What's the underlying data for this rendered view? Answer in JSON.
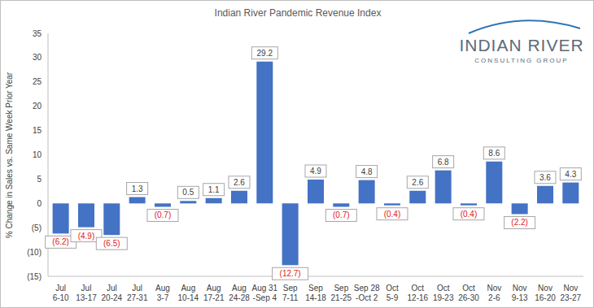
{
  "chart_data": {
    "type": "bar",
    "title": "Indian River Pandemic Revenue Index",
    "y_label": "% Change in Sales vs. Same Week Prior Year",
    "annotations": [
      "INDIAN RIVER",
      "CONSULTING GROUP"
    ],
    "categories": [
      "Jul\n6-10",
      "Jul\n13-17",
      "Jul\n20-24",
      "Jul\n27-31",
      "Aug\n3-7",
      "Aug\n10-14",
      "Aug\n17-21",
      "Aug\n24-28",
      "Aug 31\n-Sep 4",
      "Sep\n7-11",
      "Sep\n14-18",
      "Sep\n21-25",
      "Sep 28\n-Oct 2",
      "Oct\n5-9",
      "Oct\n12-16",
      "Oct\n19-23",
      "Oct\n26-30",
      "Nov\n2-6",
      "Nov\n9-13",
      "Nov\n16-20",
      "Nov\n23-27"
    ],
    "values": [
      -6.2,
      -4.9,
      -6.5,
      1.3,
      -0.7,
      0.5,
      1.1,
      2.6,
      29.2,
      -12.7,
      4.9,
      -0.7,
      4.8,
      -0.4,
      2.6,
      6.8,
      -0.4,
      8.6,
      -2.2,
      3.6,
      4.3
    ],
    "value_labels": [
      "(6.2)",
      "(4.9)",
      "(6.5)",
      "1.3",
      "(0.7)",
      "0.5",
      "1.1",
      "2.6",
      "29.2",
      "(12.7)",
      "4.9",
      "(0.7)",
      "4.8",
      "(0.4)",
      "2.6",
      "6.8",
      "(0.4)",
      "8.6",
      "(2.2)",
      "3.6",
      "4.3"
    ],
    "color": "#4472c4",
    "ylim": [
      -15,
      35
    ],
    "yticks": [
      {
        "value": -15,
        "label": "(15)"
      },
      {
        "value": -10,
        "label": "(10)"
      },
      {
        "value": -5,
        "label": "(5)"
      },
      0,
      5,
      10,
      15,
      20,
      25,
      30,
      35
    ],
    "grid": false,
    "data_labels": true
  }
}
